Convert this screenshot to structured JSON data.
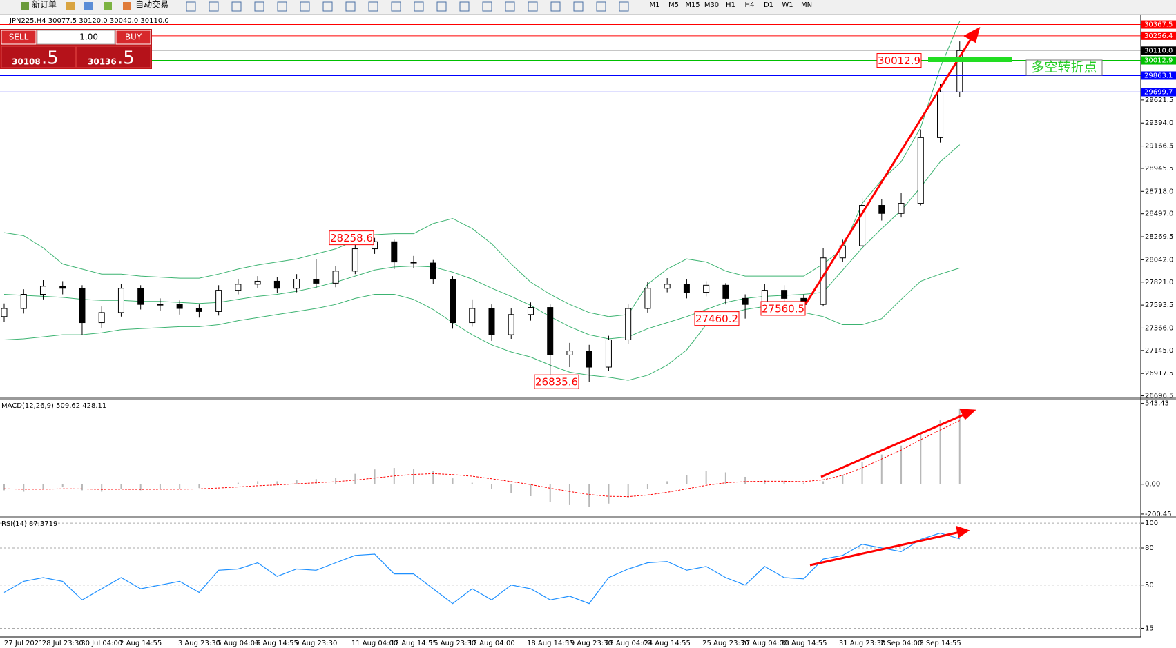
{
  "toolbar": {
    "new_order": "新订单",
    "auto_trade": "自动交易",
    "timeframes": [
      "M1",
      "M5",
      "M15",
      "M30",
      "H1",
      "H4",
      "D1",
      "W1",
      "MN"
    ]
  },
  "trade_panel": {
    "sell": "SELL",
    "buy": "BUY",
    "lot": "1.00",
    "sell_main": "30108",
    "sell_tail": ".5",
    "buy_main": "30136",
    "buy_tail": ".5"
  },
  "chart_data": [
    {
      "type": "candlestick",
      "title": "JPN225,H4  30077.5 30120.0 30040.0 30110.0",
      "categories": [
        null,
        "27 Jul 2021",
        null,
        "28 Jul 23:30",
        null,
        "30 Jul 04:00",
        null,
        "2 Aug 14:55",
        null,
        null,
        "3 Aug 23:30",
        null,
        "5 Aug 04:00",
        null,
        "6 Aug 14:55",
        null,
        "9 Aug 23:30",
        null,
        null,
        "11 Aug 04:00",
        null,
        "12 Aug 14:55",
        null,
        "15 Aug 23:30",
        null,
        "17 Aug 04:00",
        null,
        null,
        "18 Aug 14:55",
        null,
        "19 Aug 23:30",
        null,
        "23 Aug 04:00",
        null,
        "24 Aug 14:55",
        null,
        null,
        "25 Aug 23:30",
        null,
        "27 Aug 04:00",
        null,
        "30 Aug 14:55",
        null,
        null,
        "31 Aug 23:30",
        null,
        "2 Sep 04:00",
        null,
        "3 Sep 14:55",
        null
      ],
      "open": [
        27480,
        27560,
        27700,
        27780,
        27760,
        27420,
        27520,
        27760,
        27600,
        27600,
        27560,
        27530,
        27740,
        27800,
        27830,
        27760,
        27850,
        27810,
        27930,
        28150,
        28220,
        28020,
        28010,
        27850,
        27420,
        27560,
        27300,
        27500,
        27570,
        27100,
        27140,
        26980,
        27250,
        27560,
        27760,
        27800,
        27720,
        27790,
        27660,
        27600,
        27740,
        27660,
        27600,
        28060,
        28180,
        28580,
        28500,
        28600,
        29250,
        29700
      ],
      "high": [
        27610,
        27750,
        27840,
        27830,
        27790,
        27580,
        27800,
        27790,
        27660,
        27640,
        27600,
        27790,
        27850,
        27880,
        27870,
        27900,
        28050,
        27980,
        28200,
        28258.6,
        28240,
        28080,
        28040,
        27880,
        27650,
        27600,
        27560,
        27620,
        27600,
        27220,
        27200,
        27290,
        27600,
        27820,
        27860,
        27850,
        27830,
        27810,
        27700,
        27800,
        27790,
        27700,
        28160,
        28240,
        28650,
        28640,
        28700,
        29330,
        29780,
        30200
      ],
      "low": [
        27430,
        27510,
        27650,
        27700,
        27300,
        27370,
        27480,
        27550,
        27540,
        27500,
        27470,
        27490,
        27700,
        27760,
        27710,
        27720,
        27760,
        27770,
        27900,
        28100,
        27950,
        27960,
        27800,
        27360,
        27380,
        27240,
        27260,
        27440,
        26900,
        26980,
        26835.6,
        26940,
        27210,
        27520,
        27720,
        27660,
        27680,
        27600,
        27460.2,
        27560,
        27620,
        27560.5,
        27580,
        28020,
        28150,
        28430,
        28460,
        28580,
        29200,
        29650
      ],
      "close": [
        27560,
        27700,
        27780,
        27760,
        27420,
        27520,
        27760,
        27600,
        27600,
        27560,
        27530,
        27740,
        27800,
        27830,
        27760,
        27850,
        27810,
        27930,
        28150,
        28220,
        28020,
        28010,
        27850,
        27420,
        27560,
        27300,
        27500,
        27570,
        27100,
        27140,
        26980,
        27250,
        27560,
        27760,
        27800,
        27720,
        27790,
        27660,
        27600,
        27740,
        27660,
        27600,
        28060,
        28180,
        28580,
        28500,
        28600,
        29250,
        29700,
        30110
      ],
      "up_color": "#ffffff",
      "down_color": "#000000",
      "wick_color": "#000000",
      "bands": [
        {
          "color": "#3cb371",
          "values": [
            28310,
            28280,
            28160,
            28000,
            27950,
            27900,
            27900,
            27880,
            27870,
            27860,
            27860,
            27900,
            27950,
            27990,
            28020,
            28050,
            28100,
            28150,
            28230,
            28290,
            28300,
            28300,
            28400,
            28450,
            28350,
            28200,
            28000,
            27820,
            27700,
            27600,
            27520,
            27480,
            27500,
            27800,
            27950,
            28050,
            28020,
            27930,
            27880,
            27880,
            27880,
            27880,
            28000,
            28150,
            28600,
            28830,
            29010,
            29350,
            29940,
            30400
          ]
        },
        {
          "color": "#3cb371",
          "values": [
            27700,
            27690,
            27680,
            27670,
            27650,
            27640,
            27640,
            27630,
            27630,
            27620,
            27610,
            27620,
            27650,
            27680,
            27700,
            27730,
            27770,
            27820,
            27880,
            27940,
            27970,
            27980,
            27970,
            27920,
            27850,
            27760,
            27680,
            27590,
            27480,
            27380,
            27300,
            27260,
            27280,
            27360,
            27420,
            27480,
            27550,
            27620,
            27660,
            27680,
            27690,
            27700,
            27720,
            27940,
            28160,
            28350,
            28530,
            28760,
            29010,
            29180
          ]
        },
        {
          "color": "#3cb371",
          "values": [
            27250,
            27260,
            27280,
            27300,
            27300,
            27320,
            27350,
            27360,
            27370,
            27380,
            27380,
            27400,
            27440,
            27470,
            27500,
            27530,
            27560,
            27600,
            27660,
            27700,
            27700,
            27650,
            27550,
            27420,
            27300,
            27200,
            27130,
            27080,
            27000,
            26930,
            26900,
            26880,
            26850,
            26900,
            27000,
            27150,
            27400,
            27500,
            27550,
            27580,
            27560,
            27520,
            27480,
            27400,
            27400,
            27460,
            27650,
            27830,
            27900,
            27960
          ]
        }
      ],
      "ylim": [
        26680,
        30460
      ],
      "yticks": [
        29621.5,
        {
          "value": 29394,
          "label": "29394.0"
        },
        29166.5,
        28945.5,
        {
          "value": 28718,
          "label": "28718.0"
        },
        {
          "value": 28497,
          "label": "28497.0"
        },
        28269.5,
        {
          "value": 28042,
          "label": "28042.0"
        },
        {
          "value": 27821,
          "label": "27821.0"
        },
        27593.5,
        {
          "value": 27366,
          "label": "27366.0"
        },
        {
          "value": 27145,
          "label": "27145.0"
        },
        26917.5,
        26696.5
      ],
      "hlines": [
        {
          "value": 30367.5,
          "color": "#ff0000"
        },
        {
          "value": 30256.4,
          "color": "#ff0000"
        },
        {
          "value": 30110,
          "label": "30110.0",
          "color": "#000000"
        },
        {
          "value": 30012.9,
          "color": "#00c000"
        },
        {
          "value": 29863.1,
          "color": "#0000ff"
        },
        {
          "value": 29699.7,
          "color": "#0000ff"
        }
      ],
      "price_labels": [
        28258.6,
        26835.6,
        27460.2,
        27560.5,
        30012.9
      ],
      "note": "多空转折点"
    },
    {
      "type": "macd",
      "title": "MACD(12,26,9) 509.62 428.11",
      "histogram": {
        "color": "#b8b8b8",
        "values": [
          -40,
          -50,
          -30,
          -20,
          -40,
          -50,
          -30,
          -40,
          -30,
          -30,
          -25,
          0,
          10,
          20,
          20,
          30,
          35,
          45,
          70,
          100,
          110,
          105,
          90,
          40,
          10,
          -30,
          -60,
          -80,
          -120,
          -140,
          -150,
          -130,
          -90,
          -30,
          20,
          60,
          90,
          80,
          50,
          30,
          20,
          10,
          20,
          60,
          150,
          200,
          260,
          340,
          430,
          509.62
        ]
      },
      "signal": {
        "color": "#ff0000",
        "values": [
          -30,
          -33,
          -33,
          -30,
          -31,
          -34,
          -33,
          -34,
          -33,
          -33,
          -31,
          -25,
          -18,
          -10,
          -4,
          3,
          10,
          17,
          28,
          42,
          56,
          66,
          71,
          65,
          54,
          37,
          18,
          -2,
          -26,
          -49,
          -69,
          -81,
          -83,
          -72,
          -54,
          -31,
          -7,
          10,
          18,
          20,
          20,
          18,
          30,
          60,
          110,
          170,
          230,
          300,
          365,
          428.11
        ]
      },
      "ylim": [
        -210,
        565
      ],
      "yticks": [
        543.43,
        {
          "value": 0,
          "label": "0.00"
        },
        -200.45
      ]
    },
    {
      "type": "line",
      "title": "RSI(14) 87.3719",
      "color": "#1e90ff",
      "values": [
        44,
        53,
        56,
        53,
        38,
        47,
        56,
        47,
        50,
        53,
        44,
        62,
        63,
        68,
        57,
        63,
        62,
        68,
        74,
        75,
        59,
        59,
        47,
        35,
        47,
        38,
        50,
        47,
        38,
        41,
        35,
        56,
        63,
        68,
        69,
        62,
        65,
        56,
        50,
        65,
        56,
        55,
        71,
        74,
        83,
        80,
        77,
        87,
        92,
        87.3719
      ],
      "ylim": [
        8,
        104
      ],
      "yticks": [
        100,
        80,
        50,
        15
      ],
      "grid": true
    }
  ]
}
